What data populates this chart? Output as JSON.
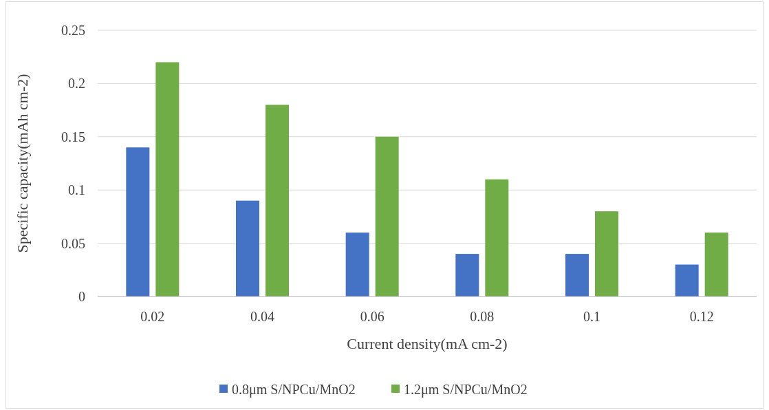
{
  "chart_data": {
    "type": "bar",
    "xlabel": "Current density(mA cm-2)",
    "ylabel": "Specific capacity(mAh cm-2)",
    "categories": [
      "0.02",
      "0.04",
      "0.06",
      "0.08",
      "0.1",
      "0.12"
    ],
    "series": [
      {
        "name": "0.8μm S/NPCu/MnO2",
        "color": "#4472c4",
        "values": [
          0.14,
          0.09,
          0.06,
          0.04,
          0.04,
          0.03
        ]
      },
      {
        "name": "1.2μm S/NPCu/MnO2",
        "color": "#70ad47",
        "values": [
          0.22,
          0.18,
          0.15,
          0.11,
          0.08,
          0.06
        ]
      }
    ],
    "ylim": [
      0,
      0.25
    ],
    "yticks": [
      0,
      0.05,
      0.1,
      0.15,
      0.2,
      0.25
    ],
    "grid": "y",
    "legend": "bottom"
  }
}
